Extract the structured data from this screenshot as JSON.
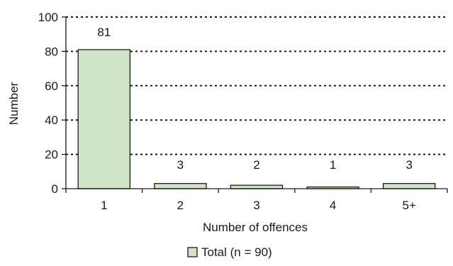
{
  "chart_data": {
    "type": "bar",
    "categories": [
      "1",
      "2",
      "3",
      "4",
      "5+"
    ],
    "series": [
      {
        "name": "Total (n = 90)",
        "values": [
          81,
          3,
          2,
          1,
          3
        ]
      }
    ],
    "data_labels": [
      "81",
      "3",
      "2",
      "1",
      "3"
    ],
    "xlabel": "Number of offences",
    "ylabel": "Number",
    "ylim": [
      0,
      100
    ],
    "yticks": [
      0,
      20,
      40,
      60,
      80,
      100
    ],
    "ytick_labels": [
      "0",
      "20",
      "40",
      "60",
      "80",
      "100"
    ],
    "grid": "horizontal-dotted",
    "legend_position": "bottom",
    "colors": {
      "bar_fill": "#d2e4c6",
      "bar_stroke": "#1a1a1a",
      "grid": "#1a1a1a"
    }
  }
}
